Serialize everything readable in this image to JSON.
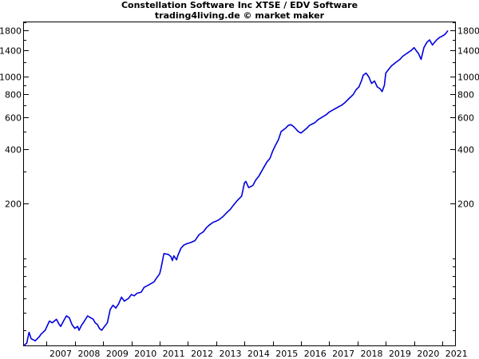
{
  "chart_data": {
    "type": "line",
    "title": "Constellation Software Inc XTSE / EDV Software",
    "subtitle": "trading4living.de © market maker",
    "y_scale": "log",
    "ylim": [
      33,
      2000
    ],
    "xlim": [
      2006.2,
      2021.45
    ],
    "y_ticks": [
      200,
      400,
      600,
      800,
      1000,
      1400,
      1800
    ],
    "x_ticks": [
      "2007",
      "2008",
      "2009",
      "2010",
      "2011",
      "2012",
      "2013",
      "2014",
      "2015",
      "2016",
      "2017",
      "2018",
      "2019",
      "2020",
      "2021"
    ],
    "line_color": "#0000e0",
    "series": [
      {
        "x": [
          2006.2,
          2006.3,
          2006.38,
          2006.45,
          2006.6,
          2006.75,
          2006.8,
          2006.95,
          2007.1,
          2007.2,
          2007.35,
          2007.45,
          2007.5,
          2007.6,
          2007.7,
          2007.8,
          2007.9,
          2008.0,
          2008.1,
          2008.15,
          2008.25,
          2008.3,
          2008.45,
          2008.55,
          2008.65,
          2008.72,
          2008.8,
          2008.87,
          2008.95,
          2009.05,
          2009.15,
          2009.25,
          2009.35,
          2009.45,
          2009.55,
          2009.65,
          2009.75,
          2009.9,
          2010.0,
          2010.1,
          2010.2,
          2010.35,
          2010.45,
          2010.6,
          2010.8,
          2010.9,
          2011.0,
          2011.05,
          2011.15,
          2011.3,
          2011.4,
          2011.45,
          2011.5,
          2011.6,
          2011.65,
          2011.75,
          2011.85,
          2011.95,
          2012.1,
          2012.25,
          2012.4,
          2012.55,
          2012.65,
          2012.75,
          2012.9,
          2013.0,
          2013.1,
          2013.25,
          2013.4,
          2013.5,
          2013.6,
          2013.75,
          2013.9,
          2014.0,
          2014.05,
          2014.15,
          2014.3,
          2014.4,
          2014.5,
          2014.6,
          2014.7,
          2014.8,
          2014.9,
          2015.0,
          2015.1,
          2015.2,
          2015.3,
          2015.45,
          2015.55,
          2015.65,
          2015.75,
          2015.8,
          2015.9,
          2016.0,
          2016.1,
          2016.2,
          2016.3,
          2016.4,
          2016.5,
          2016.6,
          2016.75,
          2016.9,
          2017.0,
          2017.15,
          2017.3,
          2017.45,
          2017.55,
          2017.7,
          2017.85,
          2017.95,
          2018.05,
          2018.15,
          2018.2,
          2018.3,
          2018.4,
          2018.5,
          2018.6,
          2018.7,
          2018.8,
          2018.87,
          2018.95,
          2019.0,
          2019.1,
          2019.2,
          2019.35,
          2019.5,
          2019.6,
          2019.75,
          2019.9,
          2020.0,
          2020.1,
          2020.15,
          2020.2,
          2020.25,
          2020.35,
          2020.45,
          2020.55,
          2020.65,
          2020.72,
          2020.8,
          2020.9,
          2021.0,
          2021.1,
          2021.2
        ],
        "values": [
          33,
          34,
          39,
          36,
          35,
          37,
          38,
          40,
          45,
          44,
          46,
          43,
          42,
          45,
          48,
          47,
          43,
          41,
          42,
          40,
          43,
          44,
          48,
          47,
          46,
          44,
          43,
          41,
          40,
          42,
          44,
          52,
          55,
          53,
          56,
          61,
          58,
          60,
          63,
          62,
          64,
          65,
          69,
          71,
          74,
          78,
          82,
          88,
          106,
          105,
          102,
          97,
          103,
          98,
          104,
          113,
          118,
          120,
          122,
          125,
          135,
          140,
          147,
          152,
          158,
          160,
          163,
          170,
          180,
          186,
          195,
          208,
          220,
          260,
          265,
          245,
          252,
          270,
          282,
          300,
          320,
          340,
          355,
          390,
          420,
          450,
          500,
          520,
          540,
          545,
          530,
          520,
          500,
          490,
          505,
          520,
          540,
          550,
          560,
          580,
          600,
          620,
          640,
          660,
          680,
          700,
          720,
          760,
          800,
          850,
          880,
          960,
          1020,
          1050,
          1000,
          920,
          950,
          880,
          860,
          830,
          900,
          1050,
          1100,
          1150,
          1200,
          1250,
          1300,
          1350,
          1400,
          1450,
          1380,
          1350,
          1300,
          1250,
          1450,
          1550,
          1600,
          1500,
          1550,
          1600,
          1650,
          1680,
          1720,
          1800
        ]
      }
    ]
  }
}
